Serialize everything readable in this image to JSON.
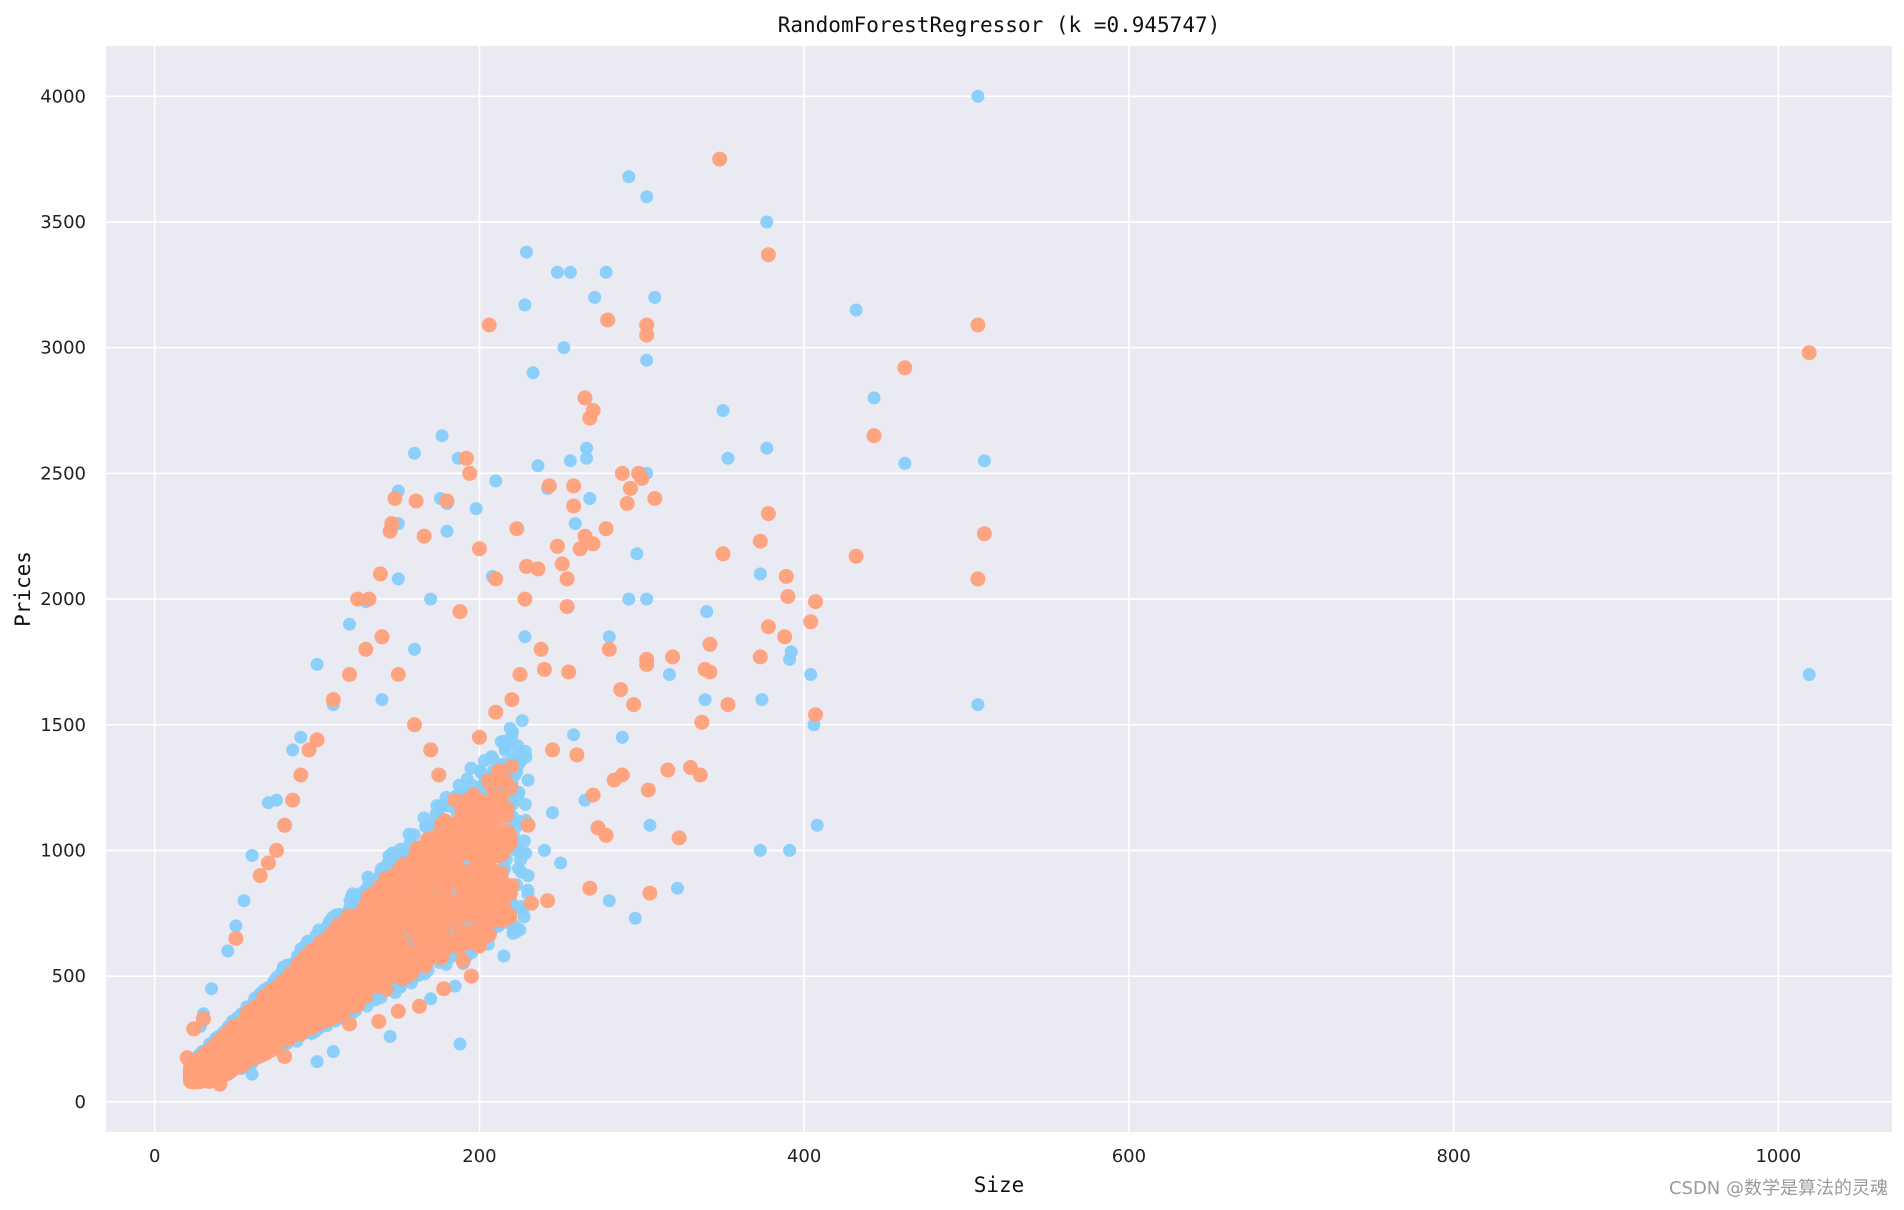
{
  "chart_data": {
    "type": "scatter",
    "title": "RandomForestRegressor (k =0.945747)",
    "xlabel": "Size",
    "ylabel": "Prices",
    "xlim": [
      -30,
      1070
    ],
    "ylim": [
      -120,
      4200
    ],
    "xticks": [
      0,
      200,
      400,
      600,
      800,
      1000
    ],
    "yticks": [
      0,
      500,
      1000,
      1500,
      2000,
      2500,
      3000,
      3500,
      4000
    ],
    "grid": true,
    "background": "#eaeaf2",
    "series": [
      {
        "color": "#87cefa",
        "points": [
          [
            507,
            4000
          ],
          [
            292,
            3680
          ],
          [
            303,
            3600
          ],
          [
            377,
            3500
          ],
          [
            229,
            3380
          ],
          [
            248,
            3300
          ],
          [
            256,
            3300
          ],
          [
            278,
            3300
          ],
          [
            308,
            3200
          ],
          [
            271,
            3200
          ],
          [
            228,
            3170
          ],
          [
            432,
            3150
          ],
          [
            252,
            3000
          ],
          [
            303,
            2950
          ],
          [
            233,
            2900
          ],
          [
            443,
            2800
          ],
          [
            350,
            2750
          ],
          [
            266,
            2600
          ],
          [
            377,
            2600
          ],
          [
            177,
            2650
          ],
          [
            160,
            2580
          ],
          [
            266,
            2560
          ],
          [
            353,
            2560
          ],
          [
            462,
            2540
          ],
          [
            511,
            2550
          ],
          [
            187,
            2560
          ],
          [
            236,
            2530
          ],
          [
            256,
            2550
          ],
          [
            303,
            2500
          ],
          [
            210,
            2470
          ],
          [
            242,
            2440
          ],
          [
            150,
            2430
          ],
          [
            176,
            2400
          ],
          [
            180,
            2380
          ],
          [
            268,
            2400
          ],
          [
            198,
            2360
          ],
          [
            180,
            2270
          ],
          [
            259,
            2300
          ],
          [
            297,
            2180
          ],
          [
            373,
            2100
          ],
          [
            208,
            2090
          ],
          [
            150,
            2080
          ],
          [
            303,
            2000
          ],
          [
            292,
            2000
          ],
          [
            340,
            1950
          ],
          [
            228,
            1850
          ],
          [
            280,
            1850
          ],
          [
            317,
            1700
          ],
          [
            404,
            1700
          ],
          [
            374,
            1600
          ],
          [
            339,
            1600
          ],
          [
            507,
            1580
          ],
          [
            406,
            1500
          ],
          [
            392,
            1790
          ],
          [
            391,
            1760
          ],
          [
            408,
            1100
          ],
          [
            322,
            850
          ],
          [
            296,
            730
          ],
          [
            373,
            1000
          ],
          [
            391,
            1000
          ],
          [
            1019,
            1700
          ],
          [
            188,
            230
          ],
          [
            280,
            800
          ],
          [
            305,
            1100
          ],
          [
            258,
            1460
          ],
          [
            288,
            1450
          ],
          [
            265,
            1200
          ],
          [
            230,
            1280
          ],
          [
            210,
            1250
          ],
          [
            245,
            1150
          ],
          [
            240,
            1000
          ],
          [
            230,
            900
          ],
          [
            250,
            950
          ],
          [
            220,
            780
          ],
          [
            210,
            700
          ],
          [
            200,
            650
          ],
          [
            215,
            580
          ],
          [
            190,
            550
          ],
          [
            185,
            460
          ],
          [
            170,
            410
          ],
          [
            145,
            260
          ],
          [
            110,
            200
          ],
          [
            100,
            160
          ],
          [
            60,
            110
          ],
          [
            40,
            100
          ],
          [
            150,
            2300
          ],
          [
            130,
            1990
          ],
          [
            120,
            1900
          ],
          [
            170,
            2000
          ],
          [
            160,
            1800
          ],
          [
            140,
            1600
          ],
          [
            100,
            1740
          ],
          [
            110,
            1580
          ],
          [
            90,
            1450
          ],
          [
            85,
            1400
          ],
          [
            75,
            1200
          ],
          [
            70,
            1190
          ],
          [
            80,
            1100
          ],
          [
            60,
            980
          ],
          [
            55,
            800
          ],
          [
            50,
            700
          ],
          [
            45,
            600
          ],
          [
            35,
            450
          ],
          [
            30,
            350
          ],
          [
            28,
            300
          ]
        ]
      },
      {
        "color": "#ffa07a",
        "points": [
          [
            348,
            3750
          ],
          [
            378,
            3370
          ],
          [
            206,
            3090
          ],
          [
            279,
            3110
          ],
          [
            303,
            3090
          ],
          [
            303,
            3050
          ],
          [
            507,
            3090
          ],
          [
            1019,
            2980
          ],
          [
            462,
            2920
          ],
          [
            265,
            2800
          ],
          [
            270,
            2750
          ],
          [
            268,
            2720
          ],
          [
            443,
            2650
          ],
          [
            192,
            2560
          ],
          [
            194,
            2500
          ],
          [
            288,
            2500
          ],
          [
            298,
            2500
          ],
          [
            293,
            2440
          ],
          [
            300,
            2480
          ],
          [
            308,
            2400
          ],
          [
            243,
            2450
          ],
          [
            258,
            2450
          ],
          [
            291,
            2380
          ],
          [
            258,
            2370
          ],
          [
            148,
            2400
          ],
          [
            161,
            2390
          ],
          [
            378,
            2340
          ],
          [
            180,
            2390
          ],
          [
            146,
            2300
          ],
          [
            145,
            2270
          ],
          [
            166,
            2250
          ],
          [
            270,
            2220
          ],
          [
            278,
            2280
          ],
          [
            511,
            2260
          ],
          [
            223,
            2280
          ],
          [
            373,
            2230
          ],
          [
            350,
            2180
          ],
          [
            432,
            2170
          ],
          [
            248,
            2210
          ],
          [
            262,
            2200
          ],
          [
            265,
            2250
          ],
          [
            389,
            2090
          ],
          [
            507,
            2080
          ],
          [
            139,
            2100
          ],
          [
            229,
            2130
          ],
          [
            236,
            2120
          ],
          [
            254,
            2080
          ],
          [
            200,
            2200
          ],
          [
            390,
            2010
          ],
          [
            407,
            1990
          ],
          [
            132,
            2000
          ],
          [
            188,
            1950
          ],
          [
            228,
            2000
          ],
          [
            254,
            1970
          ],
          [
            210,
            2080
          ],
          [
            251,
            2140
          ],
          [
            404,
            1910
          ],
          [
            378,
            1890
          ],
          [
            388,
            1850
          ],
          [
            342,
            1820
          ],
          [
            238,
            1800
          ],
          [
            280,
            1800
          ],
          [
            319,
            1770
          ],
          [
            303,
            1760
          ],
          [
            303,
            1740
          ],
          [
            373,
            1770
          ],
          [
            339,
            1720
          ],
          [
            342,
            1710
          ],
          [
            353,
            1580
          ],
          [
            337,
            1510
          ],
          [
            407,
            1540
          ],
          [
            316,
            1320
          ],
          [
            330,
            1330
          ],
          [
            336,
            1300
          ],
          [
            304,
            1240
          ],
          [
            323,
            1050
          ],
          [
            305,
            830
          ],
          [
            295,
            1580
          ],
          [
            287,
            1640
          ],
          [
            288,
            1300
          ],
          [
            283,
            1280
          ],
          [
            270,
            1220
          ],
          [
            278,
            1060
          ],
          [
            273,
            1090
          ],
          [
            268,
            850
          ],
          [
            242,
            800
          ],
          [
            232,
            790
          ],
          [
            220,
            860
          ],
          [
            210,
            790
          ],
          [
            205,
            710
          ],
          [
            200,
            620
          ],
          [
            195,
            500
          ],
          [
            190,
            560
          ],
          [
            178,
            450
          ],
          [
            163,
            380
          ],
          [
            150,
            360
          ],
          [
            138,
            320
          ],
          [
            120,
            310
          ],
          [
            80,
            180
          ],
          [
            55,
            150
          ],
          [
            40,
            70
          ],
          [
            20,
            175
          ],
          [
            24,
            290
          ],
          [
            30,
            330
          ],
          [
            50,
            650
          ],
          [
            185,
            1200
          ],
          [
            175,
            1300
          ],
          [
            170,
            1400
          ],
          [
            160,
            1500
          ],
          [
            150,
            1700
          ],
          [
            140,
            1850
          ],
          [
            130,
            1800
          ],
          [
            125,
            2000
          ],
          [
            120,
            1700
          ],
          [
            110,
            1600
          ],
          [
            100,
            1440
          ],
          [
            95,
            1400
          ],
          [
            90,
            1300
          ],
          [
            85,
            1200
          ],
          [
            80,
            1100
          ],
          [
            75,
            1000
          ],
          [
            70,
            950
          ],
          [
            65,
            900
          ],
          [
            220,
            1600
          ],
          [
            210,
            1550
          ],
          [
            200,
            1450
          ],
          [
            225,
            1700
          ],
          [
            240,
            1720
          ],
          [
            255,
            1710
          ],
          [
            245,
            1400
          ],
          [
            260,
            1380
          ],
          [
            230,
            1100
          ],
          [
            215,
            1000
          ],
          [
            205,
            950
          ],
          [
            198,
            900
          ],
          [
            190,
            850
          ],
          [
            180,
            800
          ],
          [
            170,
            750
          ],
          [
            160,
            700
          ],
          [
            150,
            650
          ]
        ]
      }
    ],
    "dense_clusters": [
      {
        "series": 0,
        "count": 1400,
        "x_range": [
          22,
          230
        ],
        "y_base_slope": 3.2,
        "y_spread_slope": 7.5,
        "y_min": 100
      },
      {
        "series": 1,
        "count": 1700,
        "x_range": [
          22,
          220
        ],
        "y_base_slope": 3.4,
        "y_spread_slope": 6.8,
        "y_min": 80
      }
    ]
  },
  "watermark": "CSDN @数学是算法的灵魂"
}
